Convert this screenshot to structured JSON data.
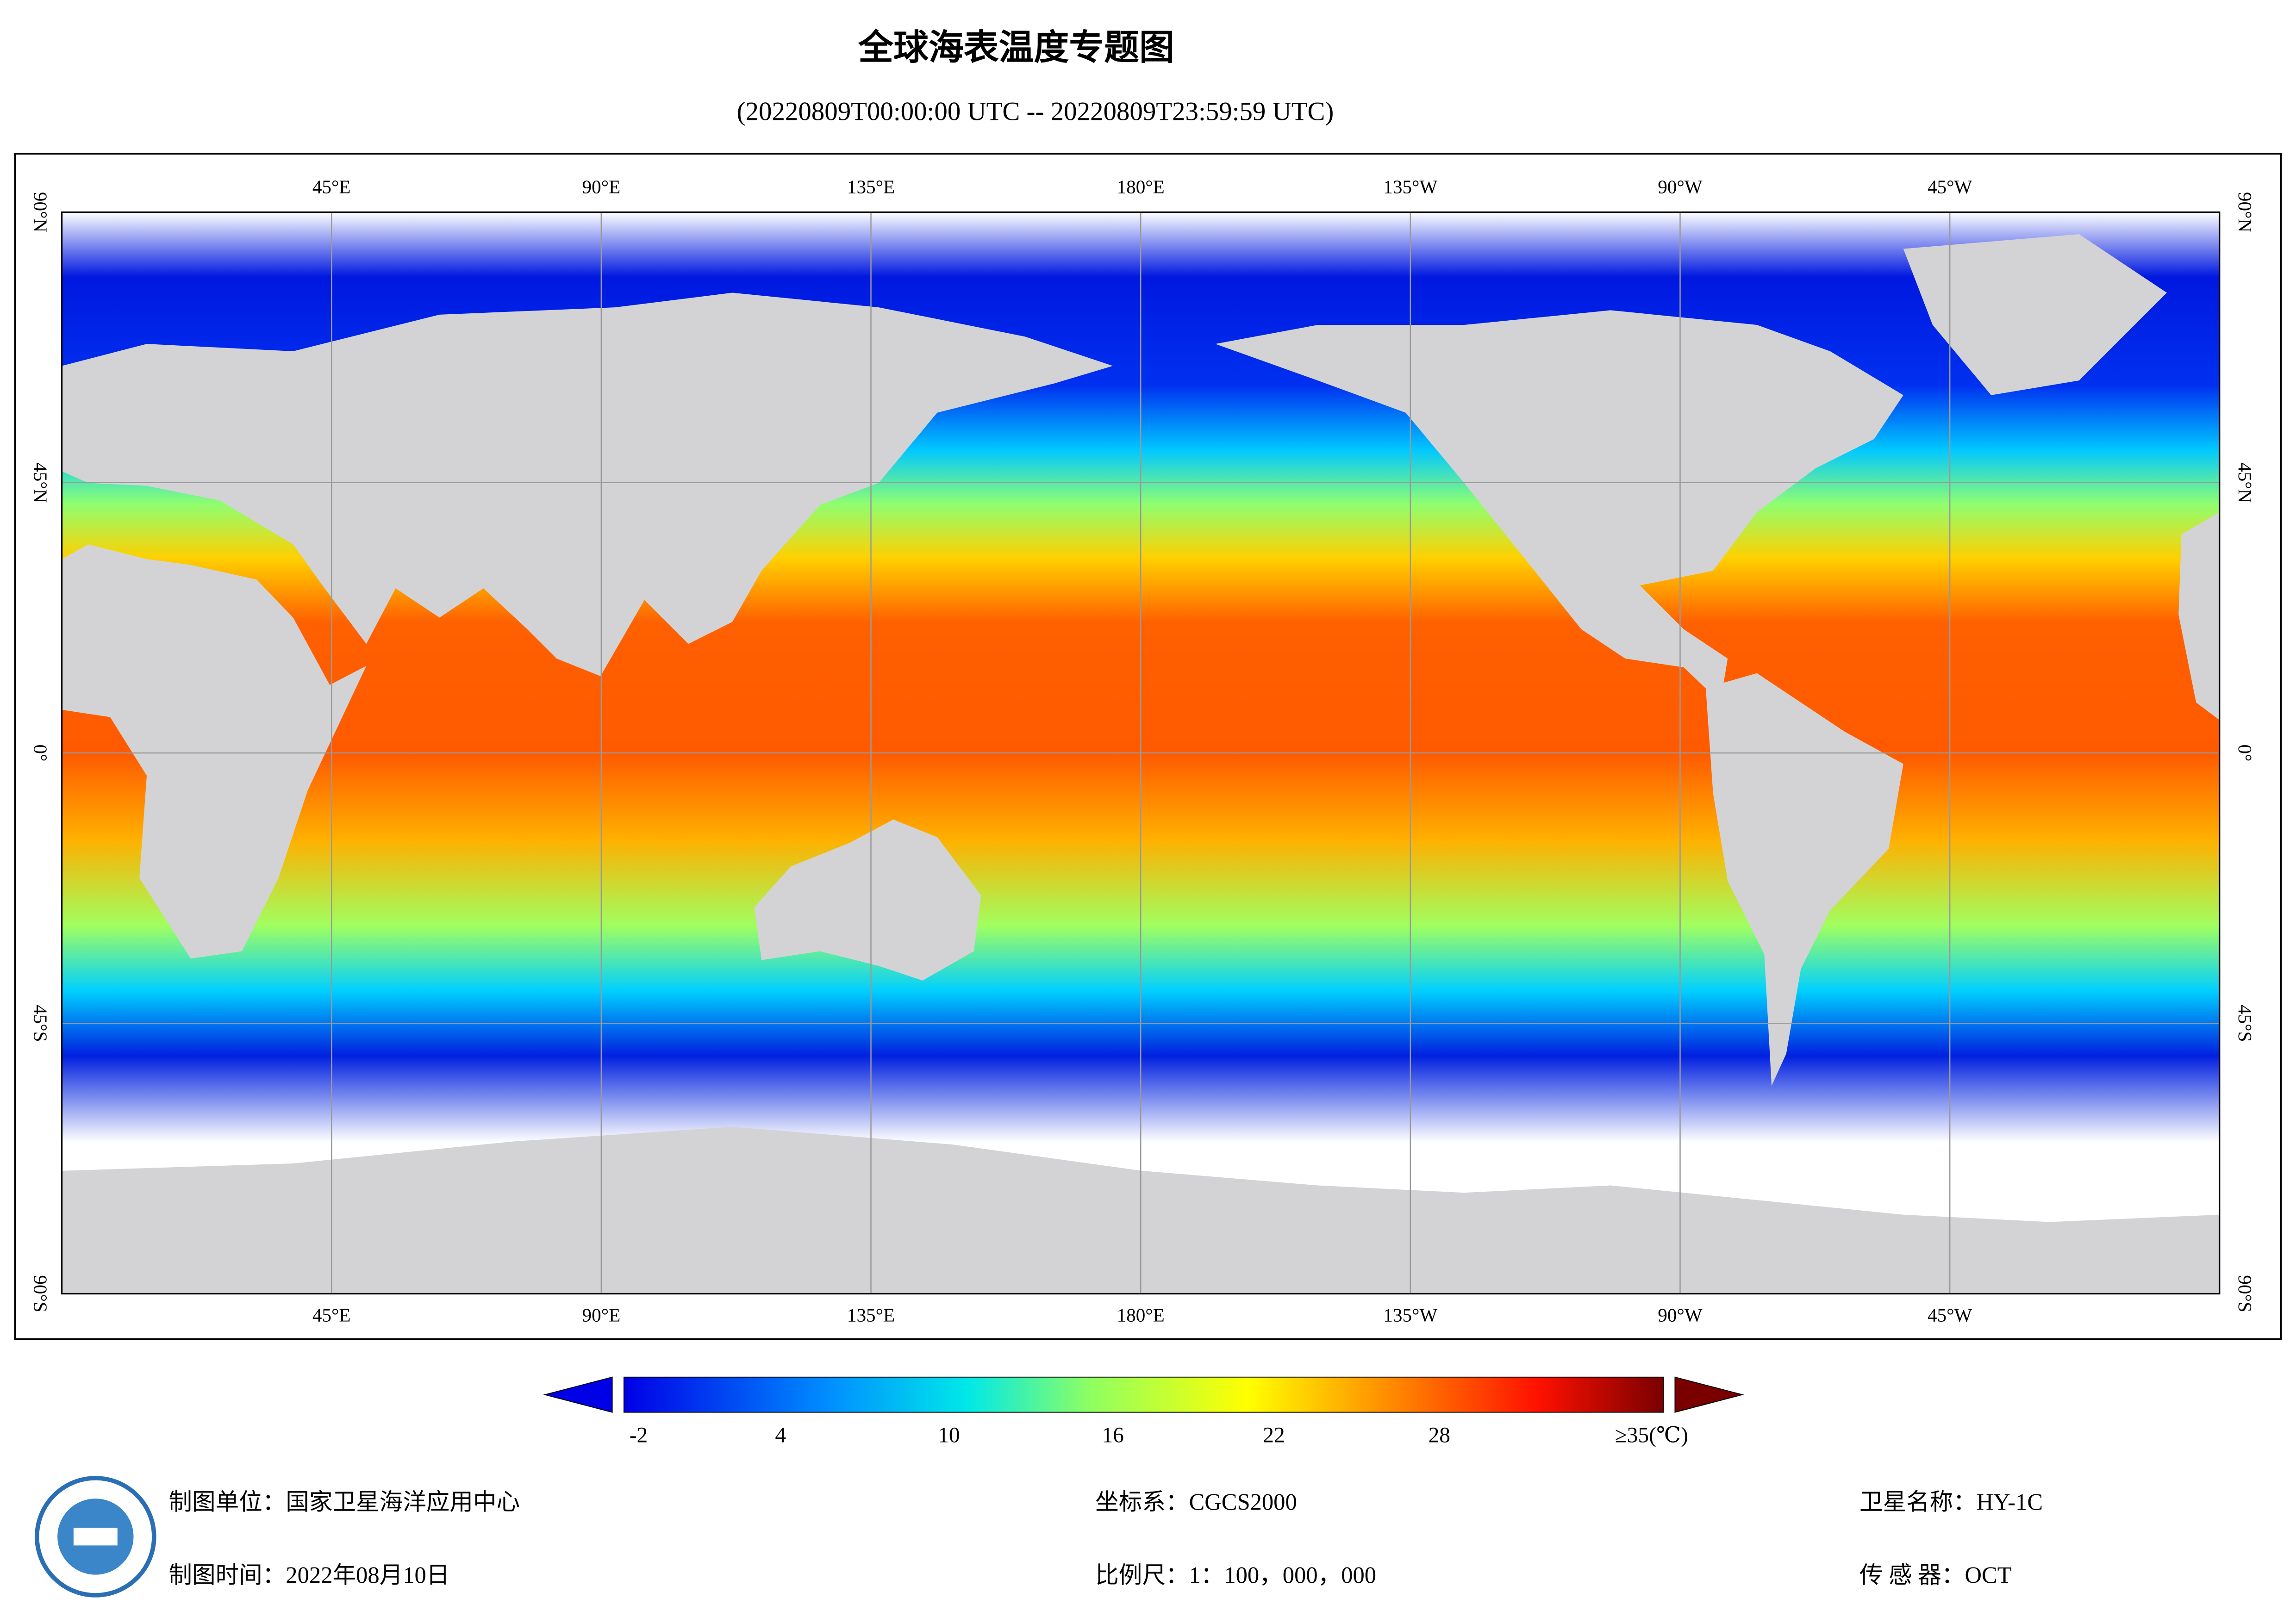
{
  "header": {
    "title": "全球海表温度专题图",
    "subtitle": "(20220809T00:00:00 UTC -- 20220809T23:59:59 UTC)"
  },
  "map": {
    "lon_labels": [
      "45°E",
      "90°E",
      "135°E",
      "180°E",
      "135°W",
      "90°W",
      "45°W"
    ],
    "lat_labels": [
      "90°N",
      "45°N",
      "0°",
      "45°S",
      "90°S"
    ]
  },
  "colorbar": {
    "ticks": [
      "-2",
      "4",
      "10",
      "16",
      "22",
      "28",
      "≥35(℃)"
    ]
  },
  "footer": {
    "unit": "制图单位：国家卫星海洋应用中心",
    "date": "制图时间：2022年08月10日",
    "crs": "坐标系：CGCS2000",
    "scale": "比例尺：1：100，000，000",
    "satellite": "卫星名称：HY-1C",
    "sensor": "传 感 器：OCT"
  }
}
